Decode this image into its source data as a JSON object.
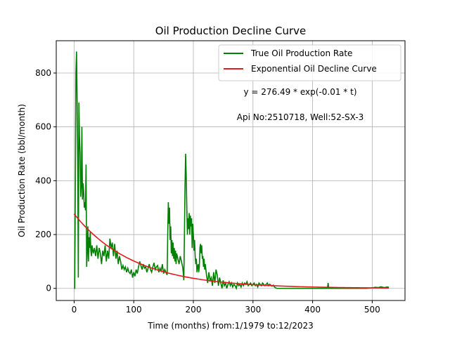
{
  "chart_data": {
    "type": "line",
    "title": "Oil Production Decline Curve",
    "xlabel": "Time (months) from:1/1979 to:12/2023",
    "ylabel": "Oil Production Rate (bbl/month)",
    "xlim": [
      -30,
      555
    ],
    "ylim": [
      -45,
      920
    ],
    "x_ticks": [
      0,
      100,
      200,
      300,
      400,
      500
    ],
    "y_ticks": [
      0,
      200,
      400,
      600,
      800
    ],
    "grid": true,
    "legend_position": "top-right",
    "annotations": [
      "y = 276.49 * exp(-0.01 * t)",
      "Api No:2510718, Well:52-SX-3"
    ],
    "series": [
      {
        "name": "True Oil Production Rate",
        "color": "#008000",
        "points": [
          [
            0,
            0
          ],
          [
            1,
            0
          ],
          [
            2,
            360
          ],
          [
            3,
            800
          ],
          [
            4,
            880
          ],
          [
            5,
            700
          ],
          [
            6,
            480
          ],
          [
            7,
            40
          ],
          [
            8,
            690
          ],
          [
            9,
            560
          ],
          [
            10,
            500
          ],
          [
            11,
            340
          ],
          [
            12,
            380
          ],
          [
            13,
            600
          ],
          [
            14,
            330
          ],
          [
            15,
            390
          ],
          [
            16,
            360
          ],
          [
            17,
            300
          ],
          [
            18,
            320
          ],
          [
            19,
            290
          ],
          [
            20,
            460
          ],
          [
            21,
            80
          ],
          [
            22,
            140
          ],
          [
            23,
            230
          ],
          [
            24,
            100
          ],
          [
            25,
            190
          ],
          [
            26,
            150
          ],
          [
            27,
            210
          ],
          [
            28,
            140
          ],
          [
            29,
            120
          ],
          [
            30,
            160
          ],
          [
            32,
            130
          ],
          [
            34,
            150
          ],
          [
            36,
            120
          ],
          [
            38,
            160
          ],
          [
            40,
            110
          ],
          [
            42,
            150
          ],
          [
            44,
            130
          ],
          [
            46,
            90
          ],
          [
            48,
            140
          ],
          [
            50,
            120
          ],
          [
            52,
            160
          ],
          [
            54,
            100
          ],
          [
            56,
            140
          ],
          [
            58,
            110
          ],
          [
            60,
            185
          ],
          [
            62,
            150
          ],
          [
            64,
            170
          ],
          [
            66,
            120
          ],
          [
            68,
            165
          ],
          [
            70,
            110
          ],
          [
            72,
            140
          ],
          [
            74,
            90
          ],
          [
            76,
            120
          ],
          [
            78,
            100
          ],
          [
            80,
            70
          ],
          [
            82,
            85
          ],
          [
            84,
            70
          ],
          [
            86,
            80
          ],
          [
            88,
            60
          ],
          [
            90,
            75
          ],
          [
            92,
            60
          ],
          [
            94,
            55
          ],
          [
            96,
            70
          ],
          [
            98,
            40
          ],
          [
            100,
            60
          ],
          [
            102,
            45
          ],
          [
            104,
            70
          ],
          [
            106,
            55
          ],
          [
            108,
            80
          ],
          [
            110,
            100
          ],
          [
            112,
            85
          ],
          [
            114,
            70
          ],
          [
            116,
            90
          ],
          [
            118,
            75
          ],
          [
            120,
            80
          ],
          [
            122,
            60
          ],
          [
            124,
            75
          ],
          [
            126,
            90
          ],
          [
            128,
            70
          ],
          [
            130,
            60
          ],
          [
            132,
            80
          ],
          [
            134,
            95
          ],
          [
            136,
            70
          ],
          [
            138,
            80
          ],
          [
            140,
            85
          ],
          [
            142,
            60
          ],
          [
            144,
            75
          ],
          [
            146,
            65
          ],
          [
            148,
            90
          ],
          [
            150,
            55
          ],
          [
            152,
            70
          ],
          [
            154,
            60
          ],
          [
            156,
            50
          ],
          [
            157,
            200
          ],
          [
            158,
            320
          ],
          [
            159,
            240
          ],
          [
            160,
            300
          ],
          [
            161,
            180
          ],
          [
            162,
            230
          ],
          [
            163,
            130
          ],
          [
            164,
            180
          ],
          [
            165,
            120
          ],
          [
            166,
            170
          ],
          [
            167,
            110
          ],
          [
            168,
            150
          ],
          [
            169,
            100
          ],
          [
            170,
            140
          ],
          [
            171,
            90
          ],
          [
            172,
            130
          ],
          [
            174,
            110
          ],
          [
            176,
            90
          ],
          [
            178,
            120
          ],
          [
            180,
            100
          ],
          [
            182,
            80
          ],
          [
            183,
            60
          ],
          [
            184,
            30
          ],
          [
            185,
            200
          ],
          [
            186,
            380
          ],
          [
            187,
            500
          ],
          [
            188,
            420
          ],
          [
            189,
            300
          ],
          [
            190,
            200
          ],
          [
            191,
            260
          ],
          [
            192,
            220
          ],
          [
            193,
            280
          ],
          [
            194,
            200
          ],
          [
            195,
            270
          ],
          [
            196,
            230
          ],
          [
            197,
            260
          ],
          [
            198,
            150
          ],
          [
            199,
            240
          ],
          [
            200,
            200
          ],
          [
            201,
            140
          ],
          [
            202,
            180
          ],
          [
            203,
            120
          ],
          [
            204,
            90
          ],
          [
            205,
            110
          ],
          [
            206,
            60
          ],
          [
            207,
            80
          ],
          [
            208,
            90
          ],
          [
            209,
            60
          ],
          [
            210,
            80
          ],
          [
            211,
            150
          ],
          [
            212,
            165
          ],
          [
            213,
            130
          ],
          [
            214,
            160
          ],
          [
            215,
            110
          ],
          [
            216,
            120
          ],
          [
            217,
            80
          ],
          [
            218,
            110
          ],
          [
            219,
            70
          ],
          [
            220,
            90
          ],
          [
            222,
            50
          ],
          [
            224,
            20
          ],
          [
            226,
            60
          ],
          [
            228,
            30
          ],
          [
            230,
            40
          ],
          [
            232,
            10
          ],
          [
            234,
            60
          ],
          [
            236,
            20
          ],
          [
            238,
            70
          ],
          [
            240,
            50
          ],
          [
            242,
            10
          ],
          [
            244,
            40
          ],
          [
            246,
            20
          ],
          [
            248,
            0
          ],
          [
            250,
            30
          ],
          [
            252,
            10
          ],
          [
            254,
            20
          ],
          [
            256,
            0
          ],
          [
            258,
            15
          ],
          [
            260,
            25
          ],
          [
            262,
            10
          ],
          [
            264,
            20
          ],
          [
            266,
            5
          ],
          [
            268,
            15
          ],
          [
            270,
            10
          ],
          [
            272,
            0
          ],
          [
            274,
            20
          ],
          [
            276,
            10
          ],
          [
            278,
            15
          ],
          [
            280,
            5
          ],
          [
            282,
            20
          ],
          [
            284,
            10
          ],
          [
            286,
            20
          ],
          [
            288,
            15
          ],
          [
            290,
            25
          ],
          [
            292,
            10
          ],
          [
            294,
            15
          ],
          [
            296,
            20
          ],
          [
            298,
            10
          ],
          [
            300,
            15
          ],
          [
            302,
            20
          ],
          [
            304,
            10
          ],
          [
            306,
            15
          ],
          [
            308,
            5
          ],
          [
            310,
            20
          ],
          [
            312,
            15
          ],
          [
            314,
            10
          ],
          [
            316,
            20
          ],
          [
            318,
            15
          ],
          [
            320,
            10
          ],
          [
            322,
            15
          ],
          [
            324,
            20
          ],
          [
            326,
            10
          ],
          [
            328,
            15
          ],
          [
            330,
            12
          ],
          [
            332,
            8
          ],
          [
            334,
            12
          ],
          [
            336,
            5
          ],
          [
            338,
            2
          ],
          [
            340,
            0
          ],
          [
            350,
            0
          ],
          [
            360,
            0
          ],
          [
            370,
            0
          ],
          [
            380,
            0
          ],
          [
            390,
            0
          ],
          [
            400,
            0
          ],
          [
            410,
            0
          ],
          [
            420,
            0
          ],
          [
            425,
            0
          ],
          [
            426,
            20
          ],
          [
            427,
            0
          ],
          [
            430,
            0
          ],
          [
            440,
            0
          ],
          [
            450,
            0
          ],
          [
            460,
            0
          ],
          [
            470,
            0
          ],
          [
            480,
            0
          ],
          [
            490,
            0
          ],
          [
            500,
            2
          ],
          [
            505,
            4
          ],
          [
            510,
            3
          ],
          [
            515,
            6
          ],
          [
            520,
            3
          ],
          [
            525,
            5
          ],
          [
            528,
            4
          ]
        ]
      },
      {
        "name": "Exponential Oil Decline Curve",
        "color": "#e41a1c",
        "model": {
          "a": 276.49,
          "k": 0.01,
          "t_start": 0,
          "t_end": 528
        }
      }
    ]
  }
}
